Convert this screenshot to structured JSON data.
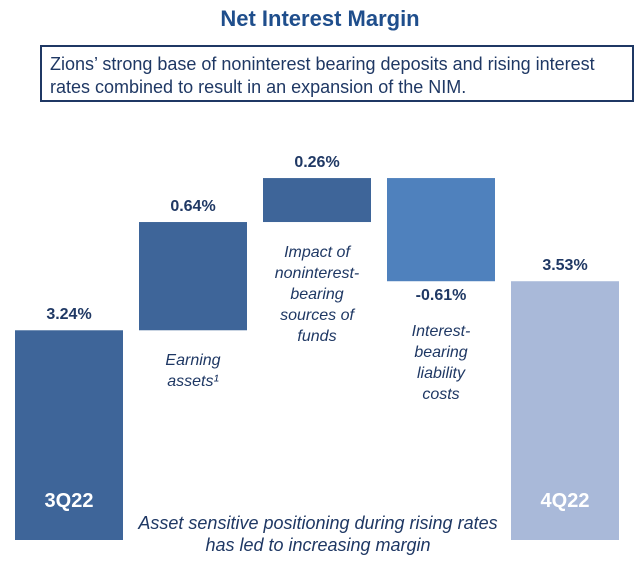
{
  "chart_data": {
    "type": "waterfall",
    "title": "Net Interest Margin",
    "subtitle": "Zions’ strong base of noninterest bearing deposits and rising interest rates combined to result in an expansion of the NIM.",
    "categories": [
      "3Q22",
      "Earning assets¹",
      "Impact of noninterest-bearing sources of funds",
      "Interest-bearing liability costs",
      "4Q22"
    ],
    "measure": [
      "absolute",
      "relative",
      "relative",
      "relative",
      "absolute"
    ],
    "values": [
      3.24,
      0.64,
      0.26,
      -0.61,
      3.53
    ],
    "value_labels": [
      "3.24%",
      "0.64%",
      "0.26%",
      "-0.61%",
      "3.53%"
    ],
    "colors": [
      "#3e6599",
      "#3e6599",
      "#3e6599",
      "#4f81bd",
      "#a9b9d9"
    ],
    "ylim": [
      2,
      4.3
    ],
    "annotation": "Asset sensitive positioning during rising rates has led to increasing margin"
  }
}
